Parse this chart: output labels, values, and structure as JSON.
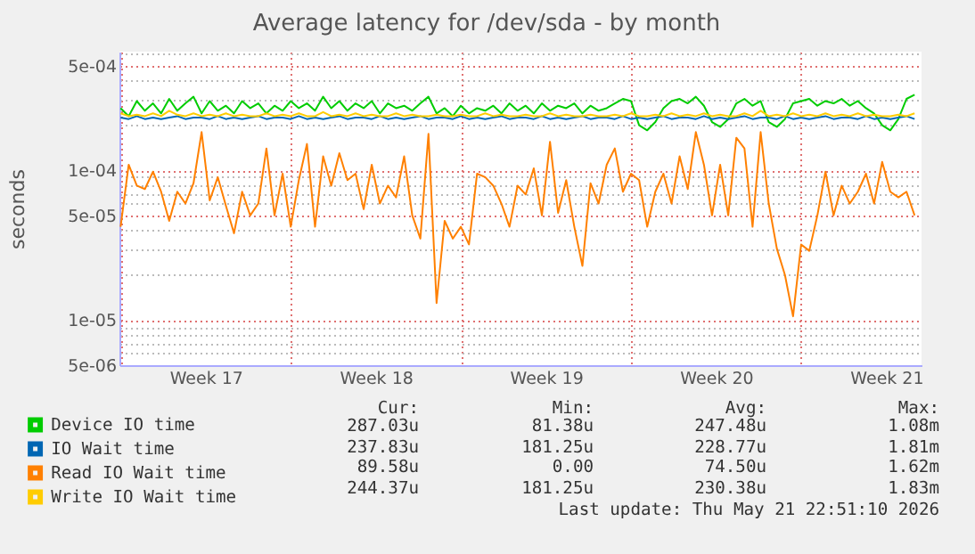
{
  "chart_data": {
    "type": "line",
    "title": "Average latency for /dev/sda - by month",
    "ylabel": "seconds",
    "x": [
      "2026-04-19T00:00",
      "2026-04-19T08:00",
      "2026-04-19T16:00",
      "2026-04-20T00:00",
      "2026-04-20T08:00",
      "2026-04-20T16:00",
      "2026-04-21T00:00",
      "2026-04-21T08:00",
      "2026-04-21T16:00",
      "2026-04-22T00:00",
      "2026-04-22T08:00",
      "2026-04-22T16:00",
      "2026-04-23T00:00",
      "2026-04-23T08:00",
      "2026-04-23T16:00",
      "2026-04-24T00:00",
      "2026-04-24T08:00",
      "2026-04-24T16:00",
      "2026-04-25T00:00",
      "2026-04-25T08:00",
      "2026-04-25T16:00",
      "2026-04-26T00:00",
      "2026-04-26T08:00",
      "2026-04-26T16:00",
      "2026-04-27T00:00",
      "2026-04-27T08:00",
      "2026-04-27T16:00",
      "2026-04-28T00:00",
      "2026-04-28T08:00",
      "2026-04-28T16:00",
      "2026-04-29T00:00",
      "2026-04-29T08:00",
      "2026-04-29T16:00",
      "2026-04-30T00:00",
      "2026-04-30T08:00",
      "2026-04-30T16:00",
      "2026-05-01T00:00",
      "2026-05-01T08:00",
      "2026-05-01T16:00",
      "2026-05-02T00:00",
      "2026-05-02T08:00",
      "2026-05-02T16:00",
      "2026-05-03T00:00",
      "2026-05-03T08:00",
      "2026-05-03T16:00",
      "2026-05-04T00:00",
      "2026-05-04T08:00",
      "2026-05-04T16:00",
      "2026-05-05T00:00",
      "2026-05-05T08:00",
      "2026-05-05T16:00",
      "2026-05-06T00:00",
      "2026-05-06T08:00",
      "2026-05-06T16:00",
      "2026-05-07T00:00",
      "2026-05-07T08:00",
      "2026-05-07T16:00",
      "2026-05-08T00:00",
      "2026-05-08T08:00",
      "2026-05-08T16:00",
      "2026-05-09T00:00",
      "2026-05-09T08:00",
      "2026-05-09T16:00",
      "2026-05-10T00:00",
      "2026-05-10T08:00",
      "2026-05-10T16:00",
      "2026-05-11T00:00",
      "2026-05-11T08:00",
      "2026-05-11T16:00",
      "2026-05-12T00:00",
      "2026-05-12T08:00",
      "2026-05-12T16:00",
      "2026-05-13T00:00",
      "2026-05-13T08:00",
      "2026-05-13T16:00",
      "2026-05-14T00:00",
      "2026-05-14T08:00",
      "2026-05-14T16:00",
      "2026-05-15T00:00",
      "2026-05-15T08:00",
      "2026-05-15T16:00",
      "2026-05-16T00:00",
      "2026-05-16T08:00",
      "2026-05-16T16:00",
      "2026-05-17T00:00",
      "2026-05-17T08:00",
      "2026-05-17T16:00",
      "2026-05-18T00:00",
      "2026-05-18T08:00",
      "2026-05-18T16:00",
      "2026-05-19T00:00",
      "2026-05-19T08:00",
      "2026-05-19T16:00",
      "2026-05-20T00:00",
      "2026-05-20T08:00",
      "2026-05-20T16:00",
      "2026-05-21T00:00",
      "2026-05-21T08:00",
      "2026-05-21T16:00"
    ],
    "series": [
      {
        "name": "Device IO time",
        "color": "#00cc00",
        "values": [
          0.00026,
          0.00023,
          0.00029,
          0.00025,
          0.00028,
          0.00024,
          0.0003,
          0.00025,
          0.00028,
          0.00031,
          0.00024,
          0.00029,
          0.00025,
          0.00027,
          0.00024,
          0.00029,
          0.00026,
          0.00028,
          0.00024,
          0.00027,
          0.00025,
          0.00029,
          0.00026,
          0.00028,
          0.00025,
          0.00031,
          0.00026,
          0.00029,
          0.00025,
          0.00028,
          0.00026,
          0.00029,
          0.00024,
          0.00028,
          0.00026,
          0.00027,
          0.00025,
          0.00028,
          0.00031,
          0.00024,
          0.00026,
          0.00023,
          0.00027,
          0.00024,
          0.00026,
          0.00025,
          0.00027,
          0.00024,
          0.00028,
          0.00025,
          0.00027,
          0.00024,
          0.00028,
          0.00025,
          0.00027,
          0.00026,
          0.00028,
          0.00024,
          0.00027,
          0.00025,
          0.00026,
          0.00028,
          0.0003,
          0.00029,
          0.0002,
          0.000185,
          0.00021,
          0.00026,
          0.00029,
          0.0003,
          0.00028,
          0.00031,
          0.00027,
          0.00021,
          0.000195,
          0.00022,
          0.00028,
          0.0003,
          0.00027,
          0.00029,
          0.00021,
          0.000195,
          0.00022,
          0.00028,
          0.00029,
          0.0003,
          0.00027,
          0.00029,
          0.00028,
          0.0003,
          0.00027,
          0.00029,
          0.00026,
          0.00024,
          0.0002,
          0.000185,
          0.00022,
          0.0003,
          0.00032
        ]
      },
      {
        "name": "IO Wait time",
        "color": "#0066b3",
        "values": [
          0.000225,
          0.00022,
          0.00023,
          0.00022,
          0.000225,
          0.00022,
          0.000225,
          0.00023,
          0.00022,
          0.000225,
          0.000225,
          0.00022,
          0.00023,
          0.00022,
          0.000225,
          0.00022,
          0.000225,
          0.00023,
          0.00022,
          0.000225,
          0.000225,
          0.00022,
          0.00023,
          0.00022,
          0.000225,
          0.00022,
          0.000225,
          0.00023,
          0.00022,
          0.000225,
          0.000225,
          0.00022,
          0.00023,
          0.00022,
          0.000225,
          0.00022,
          0.000225,
          0.00023,
          0.00022,
          0.000225,
          0.000225,
          0.00022,
          0.00023,
          0.00022,
          0.000225,
          0.00022,
          0.000225,
          0.00023,
          0.00022,
          0.000225,
          0.000225,
          0.00022,
          0.00023,
          0.00022,
          0.000225,
          0.00022,
          0.000225,
          0.00023,
          0.00022,
          0.000225,
          0.000225,
          0.00022,
          0.00023,
          0.00022,
          0.000225,
          0.00022,
          0.000225,
          0.00023,
          0.00022,
          0.000225,
          0.000225,
          0.00022,
          0.00023,
          0.00022,
          0.000225,
          0.00022,
          0.000225,
          0.00023,
          0.00022,
          0.000225,
          0.000225,
          0.00022,
          0.00023,
          0.00022,
          0.000225,
          0.00022,
          0.000225,
          0.00023,
          0.00022,
          0.000225,
          0.000225,
          0.00022,
          0.00023,
          0.00022,
          0.000225,
          0.00022,
          0.000225,
          0.00023,
          0.00022
        ]
      },
      {
        "name": "Read IO Wait time",
        "color": "#ff8000",
        "values": [
          4.2e-05,
          0.000109,
          7.9e-05,
          7.5e-05,
          9.8e-05,
          7.2e-05,
          4.6e-05,
          7.2e-05,
          6e-05,
          8.2e-05,
          0.00018,
          6.3e-05,
          9e-05,
          5.8e-05,
          3.8e-05,
          7.2e-05,
          5e-05,
          6e-05,
          0.00014,
          5e-05,
          9.5e-05,
          4.2e-05,
          8.6e-05,
          0.00015,
          4.2e-05,
          0.000124,
          7.9e-05,
          0.00013,
          8.6e-05,
          9.5e-05,
          5.5e-05,
          0.000109,
          6e-05,
          7.9e-05,
          6.6e-05,
          0.000124,
          5e-05,
          3.5e-05,
          0.000175,
          1.3e-05,
          4.6e-05,
          3.5e-05,
          4.2e-05,
          3.2e-05,
          9.5e-05,
          9e-05,
          7.9e-05,
          6e-05,
          4.2e-05,
          7.9e-05,
          6.9e-05,
          0.000103,
          5e-05,
          0.000155,
          5.2e-05,
          8.6e-05,
          4.2e-05,
          2.3e-05,
          8.2e-05,
          6e-05,
          0.000109,
          0.00014,
          7.2e-05,
          9.5e-05,
          8.6e-05,
          4.2e-05,
          7.2e-05,
          9.5e-05,
          6e-05,
          0.000124,
          7.5e-05,
          0.00018,
          0.000109,
          5e-05,
          0.000109,
          5e-05,
          0.000165,
          0.00014,
          4.2e-05,
          0.00018,
          6e-05,
          3e-05,
          2e-05,
          1.06e-05,
          3.2e-05,
          2.9e-05,
          5e-05,
          9.8e-05,
          5e-05,
          7.9e-05,
          6e-05,
          7.2e-05,
          9.5e-05,
          6e-05,
          0.000114,
          7.2e-05,
          6.6e-05,
          7.2e-05,
          5e-05
        ]
      },
      {
        "name": "Write IO Wait time",
        "color": "#ffcc00",
        "values": [
          0.00024,
          0.00023,
          0.000235,
          0.00023,
          0.00024,
          0.00023,
          0.00025,
          0.000235,
          0.00023,
          0.00024,
          0.00023,
          0.000235,
          0.00023,
          0.00024,
          0.00023,
          0.000235,
          0.00023,
          0.00023,
          0.00024,
          0.00023,
          0.000235,
          0.00023,
          0.00024,
          0.00023,
          0.00023,
          0.000245,
          0.00023,
          0.000235,
          0.00023,
          0.00024,
          0.00023,
          0.000235,
          0.00023,
          0.00023,
          0.00024,
          0.00023,
          0.000235,
          0.00023,
          0.00023,
          0.000235,
          0.00023,
          0.00023,
          0.000235,
          0.00023,
          0.00023,
          0.00024,
          0.00023,
          0.000235,
          0.00023,
          0.00023,
          0.000235,
          0.00023,
          0.00023,
          0.00024,
          0.00023,
          0.000235,
          0.00023,
          0.00023,
          0.000235,
          0.00023,
          0.00023,
          0.000235,
          0.00023,
          0.00024,
          0.00023,
          0.00023,
          0.000235,
          0.00023,
          0.00024,
          0.00023,
          0.000235,
          0.00023,
          0.00024,
          0.00023,
          0.000235,
          0.00023,
          0.00023,
          0.00024,
          0.00023,
          0.00025,
          0.00023,
          0.000235,
          0.00023,
          0.00024,
          0.00023,
          0.000235,
          0.00023,
          0.00024,
          0.00023,
          0.000235,
          0.00023,
          0.00024,
          0.00023,
          0.000235,
          0.00023,
          0.00023,
          0.000235,
          0.00023,
          0.00024
        ]
      }
    ],
    "xlim": [
      "2026-04-18T22:51",
      "2026-05-21T22:51"
    ],
    "xticks": [
      {
        "value": "2026-04-22T12:00",
        "label": "Week 17"
      },
      {
        "value": "2026-04-29T12:00",
        "label": "Week 18"
      },
      {
        "value": "2026-05-06T12:00",
        "label": "Week 19"
      },
      {
        "value": "2026-05-13T12:00",
        "label": "Week 20"
      },
      {
        "value": "2026-05-20T12:00",
        "label": "Week 21"
      }
    ],
    "ylim": [
      5e-06,
      0.00062
    ],
    "yticks": [
      {
        "value": 5e-06,
        "label": "5e-06"
      },
      {
        "value": 1e-05,
        "label": "1e-05"
      },
      {
        "value": 5e-05,
        "label": "5e-05"
      },
      {
        "value": 0.0001,
        "label": "1e-04"
      },
      {
        "value": 0.0005,
        "label": "5e-04"
      }
    ],
    "log": "y",
    "grid": true,
    "legend": "bottom left",
    "annotations": [
      "Cur:",
      "Min:",
      "Avg:",
      "Max:",
      "287.03u",
      "81.38u",
      "247.48u",
      "1.08m",
      "237.83u",
      "181.25u",
      "228.77u",
      "1.81m",
      "89.58u",
      "0.00",
      "74.50u",
      "1.62m",
      "244.37u",
      "181.25u",
      "230.38u",
      "1.83m",
      "Last update: Thu May 21 22:51:10 2026"
    ]
  }
}
